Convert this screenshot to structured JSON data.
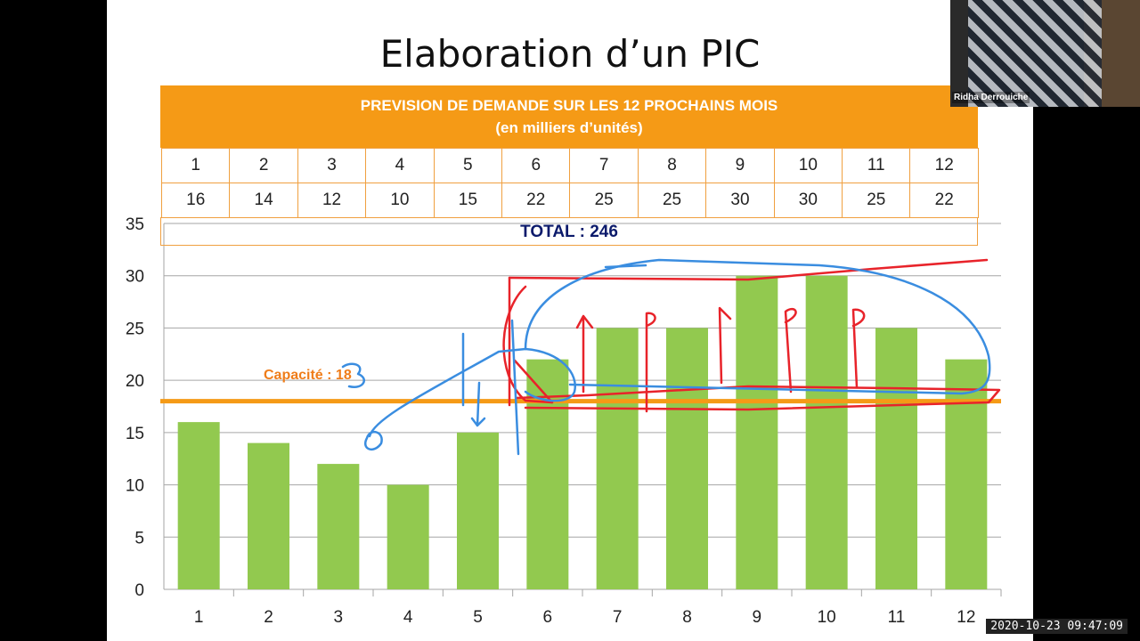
{
  "slide": {
    "title": "Elaboration d’un PIC",
    "table": {
      "header_line1": "PREVISION DE DEMANDE SUR LES 12 PROCHAINS MOIS",
      "header_line2": "(en milliers d’unités)",
      "months": [
        "1",
        "2",
        "3",
        "4",
        "5",
        "6",
        "7",
        "8",
        "9",
        "10",
        "11",
        "12"
      ],
      "demand": [
        "16",
        "14",
        "12",
        "10",
        "15",
        "22",
        "25",
        "25",
        "30",
        "30",
        "25",
        "22"
      ],
      "total_label": "TOTAL : 246"
    },
    "capacity_label": "Capacité : 18"
  },
  "chart_data": {
    "type": "bar",
    "categories": [
      "1",
      "2",
      "3",
      "4",
      "5",
      "6",
      "7",
      "8",
      "9",
      "10",
      "11",
      "12"
    ],
    "values": [
      16,
      14,
      12,
      10,
      15,
      22,
      25,
      25,
      30,
      30,
      25,
      22
    ],
    "ylim": [
      0,
      35
    ],
    "yticks": [
      0,
      5,
      10,
      15,
      20,
      25,
      30,
      35
    ],
    "grid": true,
    "bar_color": "#92c94f",
    "capacity_line": {
      "value": 18,
      "color": "#f59a16"
    }
  },
  "webcam": {
    "name": "Ridha Derrouiche"
  },
  "timestamp": "2020-10-23  09:47:09",
  "colors": {
    "header": "#f59a16",
    "bars": "#92c94f",
    "capacity": "#f59a16",
    "total_text": "#0b1a6b",
    "annotation_red": "#e8232a",
    "annotation_blue": "#3a8de0"
  }
}
